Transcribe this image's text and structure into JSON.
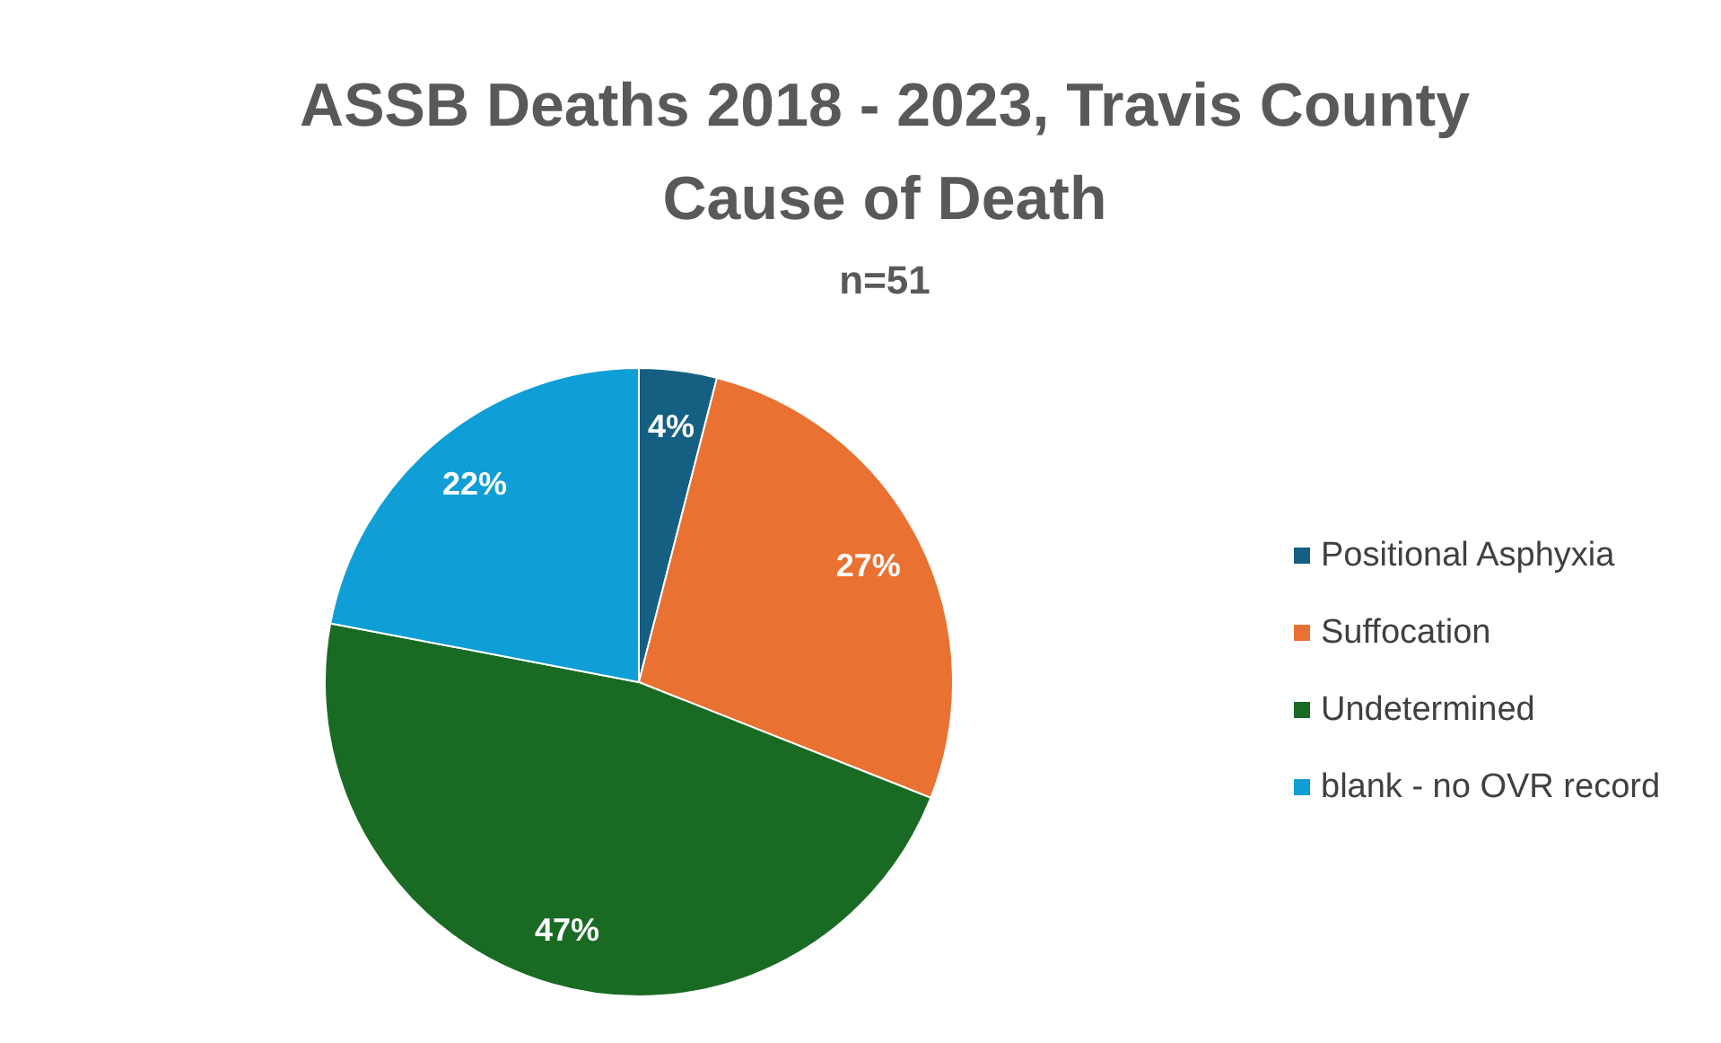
{
  "chart_data": {
    "type": "pie",
    "title": "ASSB Deaths 2018 - 2023, Travis County\nCause of Death",
    "subtitle": "n=51",
    "categories": [
      "Positional Asphyxia",
      "Suffocation",
      "Undetermined",
      "blank - no OVR record"
    ],
    "values": [
      4,
      27,
      47,
      22
    ],
    "colors": [
      "#156082",
      "#e97132",
      "#196b24",
      "#0f9ed5"
    ],
    "value_labels": [
      "4%",
      "27%",
      "47%",
      "22%"
    ],
    "legend": "right"
  }
}
